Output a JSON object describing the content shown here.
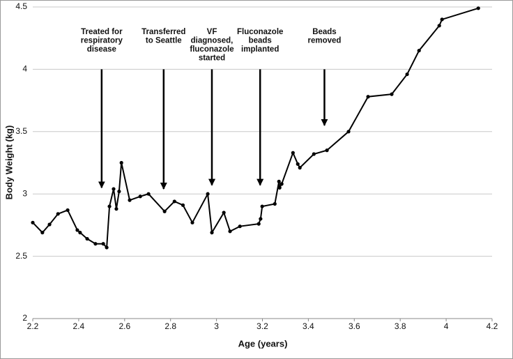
{
  "chart_data": {
    "type": "line",
    "x_label": "Age (years)",
    "y_label": "Body Weight (kg)",
    "x": [
      2.2,
      2.242,
      2.273,
      2.31,
      2.352,
      2.394,
      2.406,
      2.437,
      2.473,
      2.507,
      2.522,
      2.534,
      2.552,
      2.564,
      2.576,
      2.586,
      2.622,
      2.668,
      2.704,
      2.774,
      2.817,
      2.854,
      2.895,
      2.962,
      2.98,
      3.032,
      3.059,
      3.102,
      3.184,
      3.192,
      3.199,
      3.254,
      3.272,
      3.275,
      3.284,
      3.333,
      3.354,
      3.363,
      3.424,
      3.481,
      3.575,
      3.66,
      3.763,
      3.83,
      3.882,
      3.97,
      3.982,
      4.14
    ],
    "values": [
      2.77,
      2.69,
      2.755,
      2.84,
      2.87,
      2.71,
      2.69,
      2.64,
      2.6,
      2.6,
      2.57,
      2.9,
      3.04,
      2.88,
      3.02,
      3.25,
      2.95,
      2.98,
      3.0,
      2.86,
      2.94,
      2.91,
      2.77,
      3.0,
      2.69,
      2.85,
      2.7,
      2.74,
      2.76,
      2.8,
      2.9,
      2.92,
      3.1,
      3.05,
      3.08,
      3.33,
      3.24,
      3.21,
      3.32,
      3.35,
      3.5,
      3.78,
      3.8,
      3.96,
      4.15,
      4.35,
      4.4,
      4.49
    ],
    "color": "#000000",
    "xlim": [
      2.2,
      4.2
    ],
    "xticks": [
      2.2,
      2.4,
      2.6,
      2.8,
      3,
      3.2,
      3.4,
      3.6,
      3.8,
      4,
      4.2
    ],
    "ylim": [
      2,
      4.5
    ],
    "yticks": [
      2,
      2.5,
      3,
      3.5,
      4,
      4.5
    ],
    "grid": true,
    "annotations": [
      {
        "lines": [
          "Treated for",
          "respiratory",
          "disease"
        ],
        "x": 2.5,
        "y_from": 4,
        "y_to": 3.05
      },
      {
        "lines": [
          "Transferred",
          "to Seattle"
        ],
        "x": 2.77,
        "y_from": 4,
        "y_to": 3.04
      },
      {
        "lines": [
          "VF",
          "diagnosed,",
          "fluconazole",
          "started"
        ],
        "x": 2.98,
        "y_from": 4,
        "y_to": 3.07
      },
      {
        "lines": [
          "Fluconazole",
          "beads",
          "implanted"
        ],
        "x": 3.19,
        "y_from": 4,
        "y_to": 3.07
      },
      {
        "lines": [
          "Beads",
          "removed"
        ],
        "x": 3.47,
        "y_from": 4,
        "y_to": 3.55
      }
    ]
  }
}
